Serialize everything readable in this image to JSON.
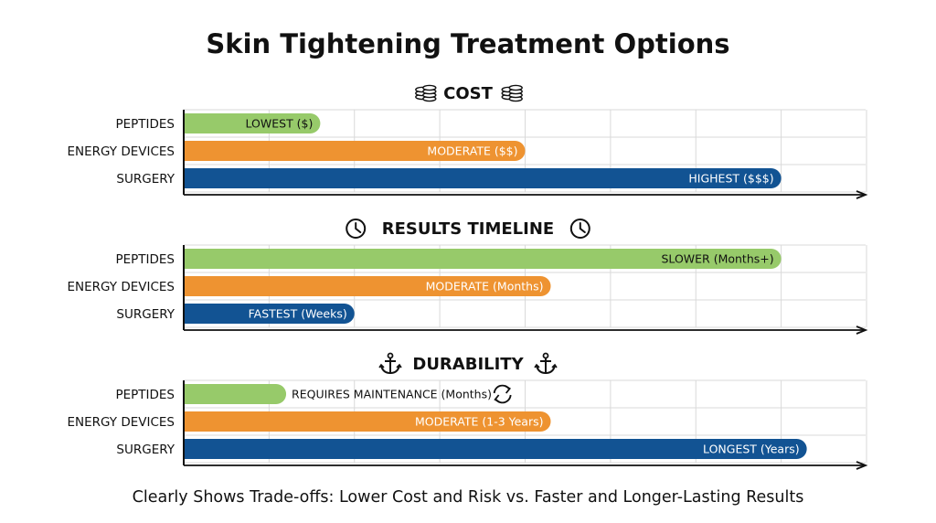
{
  "title": "Skin Tightening Treatment Options",
  "footer": "Clearly Shows Trade-offs: Lower Cost and Risk vs. Faster and Longer-Lasting Results",
  "colors": {
    "peptides": "#97ca6a",
    "energy_devices": "#ee9331",
    "surgery": "#125393",
    "grid": "#d9d9d9",
    "axis": "#111111"
  },
  "chart_data": [
    {
      "type": "bar",
      "orientation": "horizontal",
      "title": "COST",
      "icon": "coins-icon",
      "categories": [
        "PEPTIDES",
        "ENERGY DEVICES",
        "SURGERY"
      ],
      "values": [
        1.6,
        4.0,
        7.0
      ],
      "data_labels": [
        "LOWEST ($)",
        "MODERATE ($$)",
        "HIGHEST ($$$)"
      ],
      "xlim": [
        0,
        8
      ],
      "grid": true
    },
    {
      "type": "bar",
      "orientation": "horizontal",
      "title": "RESULTS TIMELINE",
      "icon": "clock-icon",
      "categories": [
        "PEPTIDES",
        "ENERGY DEVICES",
        "SURGERY"
      ],
      "values": [
        7.0,
        4.3,
        2.0
      ],
      "data_labels": [
        "SLOWER (Months+)",
        "MODERATE (Months)",
        "FASTEST (Weeks)"
      ],
      "xlim": [
        0,
        8
      ],
      "grid": true
    },
    {
      "type": "bar",
      "orientation": "horizontal",
      "title": "DURABILITY",
      "icon": "anchor-icon",
      "categories": [
        "PEPTIDES",
        "ENERGY DEVICES",
        "SURGERY"
      ],
      "values": [
        1.2,
        4.3,
        7.3
      ],
      "data_labels": [
        "REQUIRES MAINTENANCE (Months)",
        "MODERATE (1-3 Years)",
        "LONGEST (Years)"
      ],
      "label_outside": [
        true,
        false,
        false
      ],
      "xlim": [
        0,
        8
      ],
      "grid": true,
      "annotation_icon": "refresh-icon"
    }
  ]
}
